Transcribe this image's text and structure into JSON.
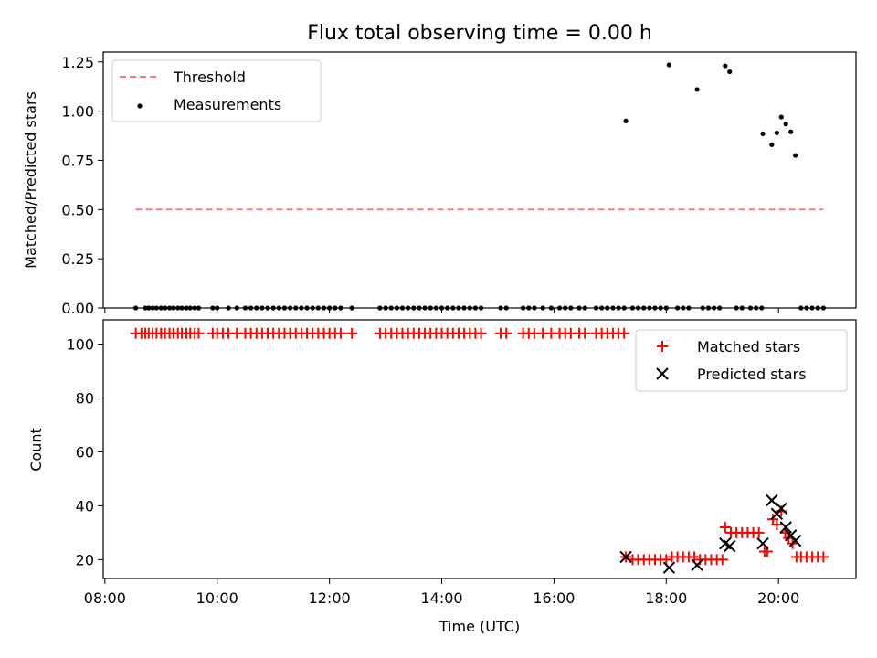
{
  "chart_data": [
    {
      "type": "scatter",
      "title": "Flux total observing time = 0.00 h",
      "ylabel": "Matched/Predicted stars",
      "xlabel": "",
      "x_axis": "time (hours UTC)",
      "xlim": [
        7.97,
        21.38
      ],
      "ylim": [
        0.0,
        1.3
      ],
      "yticks": [
        "0.00",
        "0.25",
        "0.50",
        "0.75",
        "1.00",
        "1.25"
      ],
      "legend": {
        "placement": "top-left",
        "entries": [
          "Threshold",
          "Measurements"
        ]
      },
      "threshold": {
        "name": "Threshold",
        "value": 0.5,
        "x_range": [
          8.55,
          20.8
        ],
        "color": "#ff7b7b",
        "style": "dashed"
      },
      "measurements": {
        "name": "Measurements",
        "color": "#000000",
        "zero_times": [
          8.55,
          8.72,
          8.78,
          8.85,
          8.92,
          9.0,
          9.07,
          9.15,
          9.22,
          9.3,
          9.37,
          9.45,
          9.52,
          9.6,
          9.67,
          9.92,
          10.0,
          10.2,
          10.35,
          10.5,
          10.6,
          10.7,
          10.8,
          10.9,
          11.0,
          11.1,
          11.2,
          11.3,
          11.4,
          11.5,
          11.6,
          11.7,
          11.8,
          11.9,
          12.0,
          12.1,
          12.2,
          12.4,
          12.9,
          13.0,
          13.1,
          13.2,
          13.3,
          13.4,
          13.5,
          13.6,
          13.7,
          13.8,
          13.9,
          14.0,
          14.1,
          14.2,
          14.3,
          14.4,
          14.5,
          14.6,
          14.7,
          15.05,
          15.15,
          15.45,
          15.55,
          15.65,
          15.8,
          15.95,
          16.1,
          16.2,
          16.3,
          16.45,
          16.55,
          16.75,
          16.85,
          16.95,
          17.05,
          17.15,
          17.25,
          17.4,
          17.5,
          17.6,
          17.7,
          17.8,
          17.9,
          18.0,
          18.2,
          18.3,
          18.4,
          18.65,
          18.75,
          18.85,
          18.95,
          19.25,
          19.35,
          19.5,
          19.6,
          19.7,
          20.4,
          20.5,
          20.6,
          20.7,
          20.8
        ],
        "points": [
          {
            "x": 17.28,
            "y": 0.95
          },
          {
            "x": 18.05,
            "y": 1.235
          },
          {
            "x": 18.55,
            "y": 1.11
          },
          {
            "x": 19.05,
            "y": 1.23
          },
          {
            "x": 19.13,
            "y": 1.2
          },
          {
            "x": 19.72,
            "y": 0.885
          },
          {
            "x": 19.88,
            "y": 0.83
          },
          {
            "x": 19.97,
            "y": 0.89
          },
          {
            "x": 20.05,
            "y": 0.97
          },
          {
            "x": 20.13,
            "y": 0.935
          },
          {
            "x": 20.22,
            "y": 0.895
          },
          {
            "x": 20.3,
            "y": 0.775
          }
        ]
      }
    },
    {
      "type": "scatter",
      "title": "",
      "ylabel": "Count",
      "xlabel": "Time (UTC)",
      "xlim": [
        7.97,
        21.38
      ],
      "ylim": [
        13,
        109
      ],
      "yticks": [
        "20",
        "40",
        "60",
        "80",
        "100"
      ],
      "xticks": [
        "08:00",
        "10:00",
        "12:00",
        "14:00",
        "16:00",
        "18:00",
        "20:00"
      ],
      "legend": {
        "placement": "top-right",
        "entries": [
          "Matched stars",
          "Predicted stars"
        ]
      },
      "series": [
        {
          "name": "Matched stars",
          "color": "#ff0000",
          "marker": "plus",
          "high_value": 104,
          "high_times": [
            8.55,
            8.65,
            8.72,
            8.78,
            8.85,
            8.92,
            9.0,
            9.07,
            9.15,
            9.22,
            9.3,
            9.37,
            9.45,
            9.52,
            9.6,
            9.67,
            9.92,
            10.0,
            10.1,
            10.2,
            10.35,
            10.5,
            10.6,
            10.7,
            10.8,
            10.9,
            11.0,
            11.1,
            11.2,
            11.3,
            11.4,
            11.5,
            11.6,
            11.7,
            11.8,
            11.9,
            12.0,
            12.1,
            12.2,
            12.4,
            12.9,
            13.0,
            13.1,
            13.2,
            13.3,
            13.4,
            13.5,
            13.6,
            13.7,
            13.8,
            13.9,
            14.0,
            14.1,
            14.2,
            14.3,
            14.4,
            14.5,
            14.6,
            14.7,
            15.05,
            15.15,
            15.45,
            15.55,
            15.65,
            15.8,
            15.95,
            16.1,
            16.2,
            16.3,
            16.45,
            16.55,
            16.75,
            16.85,
            16.95,
            17.05,
            17.15,
            17.25
          ],
          "low_points": [
            {
              "x": 17.28,
              "y": 21
            },
            {
              "x": 17.4,
              "y": 20
            },
            {
              "x": 17.5,
              "y": 20
            },
            {
              "x": 17.6,
              "y": 20
            },
            {
              "x": 17.7,
              "y": 20
            },
            {
              "x": 17.8,
              "y": 20
            },
            {
              "x": 17.9,
              "y": 20
            },
            {
              "x": 18.0,
              "y": 20
            },
            {
              "x": 18.1,
              "y": 21
            },
            {
              "x": 18.2,
              "y": 21
            },
            {
              "x": 18.3,
              "y": 21
            },
            {
              "x": 18.4,
              "y": 21
            },
            {
              "x": 18.5,
              "y": 21
            },
            {
              "x": 18.6,
              "y": 20
            },
            {
              "x": 18.7,
              "y": 20
            },
            {
              "x": 18.8,
              "y": 20
            },
            {
              "x": 18.9,
              "y": 20
            },
            {
              "x": 19.0,
              "y": 20
            },
            {
              "x": 19.05,
              "y": 32
            },
            {
              "x": 19.15,
              "y": 30
            },
            {
              "x": 19.25,
              "y": 30
            },
            {
              "x": 19.35,
              "y": 30
            },
            {
              "x": 19.45,
              "y": 30
            },
            {
              "x": 19.55,
              "y": 30
            },
            {
              "x": 19.65,
              "y": 30
            },
            {
              "x": 19.75,
              "y": 23
            },
            {
              "x": 19.8,
              "y": 23
            },
            {
              "x": 19.9,
              "y": 35
            },
            {
              "x": 19.97,
              "y": 33
            },
            {
              "x": 20.05,
              "y": 38
            },
            {
              "x": 20.12,
              "y": 30
            },
            {
              "x": 20.18,
              "y": 28
            },
            {
              "x": 20.25,
              "y": 26
            },
            {
              "x": 20.32,
              "y": 21
            },
            {
              "x": 20.4,
              "y": 21
            },
            {
              "x": 20.5,
              "y": 21
            },
            {
              "x": 20.6,
              "y": 21
            },
            {
              "x": 20.7,
              "y": 21
            },
            {
              "x": 20.8,
              "y": 21
            }
          ]
        },
        {
          "name": "Predicted stars",
          "color": "#000000",
          "marker": "x",
          "points": [
            {
              "x": 17.28,
              "y": 21
            },
            {
              "x": 18.05,
              "y": 17
            },
            {
              "x": 18.55,
              "y": 18
            },
            {
              "x": 19.05,
              "y": 26
            },
            {
              "x": 19.13,
              "y": 25
            },
            {
              "x": 19.72,
              "y": 26
            },
            {
              "x": 19.88,
              "y": 42
            },
            {
              "x": 19.97,
              "y": 37
            },
            {
              "x": 20.05,
              "y": 39
            },
            {
              "x": 20.13,
              "y": 32
            },
            {
              "x": 20.22,
              "y": 29
            },
            {
              "x": 20.3,
              "y": 27
            }
          ]
        }
      ]
    }
  ]
}
